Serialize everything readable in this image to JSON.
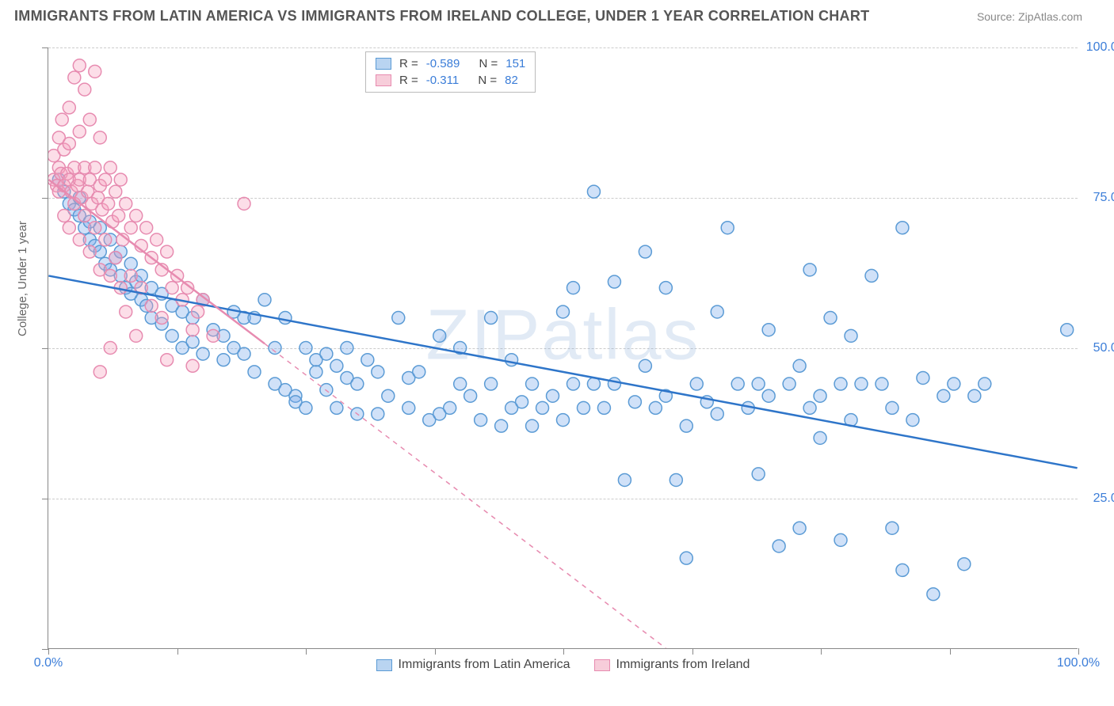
{
  "title": "IMMIGRANTS FROM LATIN AMERICA VS IMMIGRANTS FROM IRELAND COLLEGE, UNDER 1 YEAR CORRELATION CHART",
  "source": "Source: ZipAtlas.com",
  "watermark": "ZIPatlas",
  "ylabel": "College, Under 1 year",
  "chart": {
    "type": "scatter",
    "xlim": [
      0,
      100
    ],
    "ylim": [
      0,
      100
    ],
    "xtick_labels": {
      "0": "0.0%",
      "100": "100.0%"
    },
    "ytick_labels": {
      "25": "25.0%",
      "50": "50.0%",
      "75": "75.0%",
      "100": "100.0%"
    },
    "xtick_positions": [
      0,
      12.5,
      25,
      37.5,
      50,
      62.5,
      75,
      87.5,
      100
    ],
    "ytick_positions": [
      0,
      25,
      50,
      75,
      100
    ],
    "grid_y": [
      25,
      50,
      75,
      100
    ],
    "background_color": "#ffffff",
    "grid_color": "#cccccc",
    "axis_color": "#888888",
    "marker_radius": 8,
    "marker_stroke_width": 1.5,
    "trend_line_width": 2.5,
    "series": [
      {
        "name": "Immigrants from Latin America",
        "fill": "rgba(120,170,235,0.35)",
        "stroke": "#5b9bd5",
        "swatch_fill": "#b9d4f1",
        "swatch_stroke": "#5b9bd5",
        "R": "-0.589",
        "N": "151",
        "trend": {
          "x1": 0,
          "y1": 62,
          "x2": 100,
          "y2": 30,
          "color": "#2e75c9",
          "dashed": false
        },
        "points": [
          [
            1,
            78
          ],
          [
            1.5,
            76
          ],
          [
            2,
            74
          ],
          [
            2.5,
            73
          ],
          [
            3,
            72
          ],
          [
            3,
            75
          ],
          [
            3.5,
            70
          ],
          [
            4,
            71
          ],
          [
            4,
            68
          ],
          [
            4.5,
            67
          ],
          [
            5,
            66
          ],
          [
            5,
            70
          ],
          [
            5.5,
            64
          ],
          [
            6,
            68
          ],
          [
            6,
            63
          ],
          [
            6.5,
            65
          ],
          [
            7,
            62
          ],
          [
            7,
            66
          ],
          [
            7.5,
            60
          ],
          [
            8,
            64
          ],
          [
            8,
            59
          ],
          [
            8.5,
            61
          ],
          [
            9,
            58
          ],
          [
            9,
            62
          ],
          [
            9.5,
            57
          ],
          [
            10,
            60
          ],
          [
            10,
            55
          ],
          [
            11,
            59
          ],
          [
            11,
            54
          ],
          [
            12,
            57
          ],
          [
            12,
            52
          ],
          [
            13,
            56
          ],
          [
            13,
            50
          ],
          [
            14,
            55
          ],
          [
            14,
            51
          ],
          [
            15,
            58
          ],
          [
            15,
            49
          ],
          [
            16,
            53
          ],
          [
            17,
            52
          ],
          [
            17,
            48
          ],
          [
            18,
            56
          ],
          [
            18,
            50
          ],
          [
            19,
            49
          ],
          [
            19,
            55
          ],
          [
            20,
            55
          ],
          [
            20,
            46
          ],
          [
            21,
            58
          ],
          [
            22,
            50
          ],
          [
            22,
            44
          ],
          [
            23,
            43
          ],
          [
            23,
            55
          ],
          [
            24,
            42
          ],
          [
            24,
            41
          ],
          [
            25,
            50
          ],
          [
            25,
            40
          ],
          [
            26,
            46
          ],
          [
            26,
            48
          ],
          [
            27,
            43
          ],
          [
            27,
            49
          ],
          [
            28,
            47
          ],
          [
            28,
            40
          ],
          [
            29,
            45
          ],
          [
            29,
            50
          ],
          [
            30,
            44
          ],
          [
            30,
            39
          ],
          [
            31,
            48
          ],
          [
            32,
            39
          ],
          [
            32,
            46
          ],
          [
            33,
            42
          ],
          [
            34,
            55
          ],
          [
            35,
            45
          ],
          [
            35,
            40
          ],
          [
            36,
            46
          ],
          [
            37,
            38
          ],
          [
            38,
            52
          ],
          [
            38,
            39
          ],
          [
            39,
            40
          ],
          [
            40,
            44
          ],
          [
            40,
            50
          ],
          [
            41,
            42
          ],
          [
            42,
            38
          ],
          [
            43,
            44
          ],
          [
            43,
            55
          ],
          [
            44,
            37
          ],
          [
            45,
            40
          ],
          [
            45,
            48
          ],
          [
            46,
            41
          ],
          [
            47,
            44
          ],
          [
            47,
            37
          ],
          [
            48,
            40
          ],
          [
            49,
            42
          ],
          [
            50,
            56
          ],
          [
            50,
            38
          ],
          [
            51,
            44
          ],
          [
            51,
            60
          ],
          [
            52,
            40
          ],
          [
            53,
            44
          ],
          [
            53,
            76
          ],
          [
            54,
            40
          ],
          [
            55,
            44
          ],
          [
            55,
            61
          ],
          [
            56,
            28
          ],
          [
            57,
            41
          ],
          [
            58,
            66
          ],
          [
            58,
            47
          ],
          [
            59,
            40
          ],
          [
            60,
            42
          ],
          [
            60,
            60
          ],
          [
            61,
            28
          ],
          [
            62,
            15
          ],
          [
            62,
            37
          ],
          [
            63,
            44
          ],
          [
            64,
            41
          ],
          [
            65,
            56
          ],
          [
            65,
            39
          ],
          [
            66,
            70
          ],
          [
            67,
            44
          ],
          [
            68,
            40
          ],
          [
            69,
            29
          ],
          [
            69,
            44
          ],
          [
            70,
            42
          ],
          [
            70,
            53
          ],
          [
            71,
            17
          ],
          [
            72,
            44
          ],
          [
            73,
            20
          ],
          [
            73,
            47
          ],
          [
            74,
            40
          ],
          [
            74,
            63
          ],
          [
            75,
            42
          ],
          [
            75,
            35
          ],
          [
            76,
            55
          ],
          [
            77,
            44
          ],
          [
            77,
            18
          ],
          [
            78,
            38
          ],
          [
            78,
            52
          ],
          [
            79,
            44
          ],
          [
            80,
            62
          ],
          [
            81,
            44
          ],
          [
            82,
            20
          ],
          [
            82,
            40
          ],
          [
            83,
            13
          ],
          [
            83,
            70
          ],
          [
            84,
            38
          ],
          [
            85,
            45
          ],
          [
            86,
            9
          ],
          [
            87,
            42
          ],
          [
            88,
            44
          ],
          [
            89,
            14
          ],
          [
            90,
            42
          ],
          [
            91,
            44
          ],
          [
            99,
            53
          ]
        ]
      },
      {
        "name": "Immigrants from Ireland",
        "fill": "rgba(245,160,190,0.35)",
        "stroke": "#e78bb0",
        "swatch_fill": "#f7cdda",
        "swatch_stroke": "#e78bb0",
        "R": "-0.311",
        "N": "82",
        "trend": {
          "x1": 0,
          "y1": 78,
          "x2": 60,
          "y2": 0,
          "color": "#e78bb0",
          "dashed": true
        },
        "trend_solid_end": 21,
        "points": [
          [
            0.5,
            78
          ],
          [
            0.5,
            82
          ],
          [
            0.8,
            77
          ],
          [
            1,
            80
          ],
          [
            1,
            85
          ],
          [
            1,
            76
          ],
          [
            1.2,
            79
          ],
          [
            1.3,
            88
          ],
          [
            1.5,
            77
          ],
          [
            1.5,
            83
          ],
          [
            1.5,
            72
          ],
          [
            1.8,
            79
          ],
          [
            2,
            78
          ],
          [
            2,
            84
          ],
          [
            2,
            90
          ],
          [
            2,
            70
          ],
          [
            2.2,
            76
          ],
          [
            2.5,
            80
          ],
          [
            2.5,
            74
          ],
          [
            2.5,
            95
          ],
          [
            2.8,
            77
          ],
          [
            3,
            78
          ],
          [
            3,
            68
          ],
          [
            3,
            86
          ],
          [
            3,
            97
          ],
          [
            3.2,
            75
          ],
          [
            3.5,
            80
          ],
          [
            3.5,
            72
          ],
          [
            3.5,
            93
          ],
          [
            3.8,
            76
          ],
          [
            4,
            78
          ],
          [
            4,
            66
          ],
          [
            4,
            88
          ],
          [
            4.2,
            74
          ],
          [
            4.5,
            80
          ],
          [
            4.5,
            70
          ],
          [
            4.5,
            96
          ],
          [
            4.8,
            75
          ],
          [
            5,
            77
          ],
          [
            5,
            63
          ],
          [
            5,
            85
          ],
          [
            5.2,
            73
          ],
          [
            5.5,
            78
          ],
          [
            5.5,
            68
          ],
          [
            5.8,
            74
          ],
          [
            6,
            62
          ],
          [
            6,
            80
          ],
          [
            6.2,
            71
          ],
          [
            6.5,
            76
          ],
          [
            6.5,
            65
          ],
          [
            6.8,
            72
          ],
          [
            7,
            60
          ],
          [
            7,
            78
          ],
          [
            7.2,
            68
          ],
          [
            7.5,
            74
          ],
          [
            7.5,
            56
          ],
          [
            8,
            70
          ],
          [
            8,
            62
          ],
          [
            8.5,
            72
          ],
          [
            8.5,
            52
          ],
          [
            9,
            67
          ],
          [
            9,
            60
          ],
          [
            9.5,
            70
          ],
          [
            10,
            57
          ],
          [
            10,
            65
          ],
          [
            10.5,
            68
          ],
          [
            11,
            55
          ],
          [
            11,
            63
          ],
          [
            11.5,
            66
          ],
          [
            11.5,
            48
          ],
          [
            12,
            60
          ],
          [
            12.5,
            62
          ],
          [
            13,
            58
          ],
          [
            13.5,
            60
          ],
          [
            14,
            53
          ],
          [
            14,
            47
          ],
          [
            14.5,
            56
          ],
          [
            15,
            58
          ],
          [
            16,
            52
          ],
          [
            19,
            74
          ],
          [
            6,
            50
          ],
          [
            5,
            46
          ]
        ]
      }
    ]
  },
  "legend_top": {
    "r_label": "R =",
    "n_label": "N ="
  },
  "legend_bottom": [
    {
      "label": "Immigrants from Latin America",
      "swatch_fill": "#b9d4f1",
      "swatch_stroke": "#5b9bd5"
    },
    {
      "label": "Immigrants from Ireland",
      "swatch_fill": "#f7cdda",
      "swatch_stroke": "#e78bb0"
    }
  ]
}
